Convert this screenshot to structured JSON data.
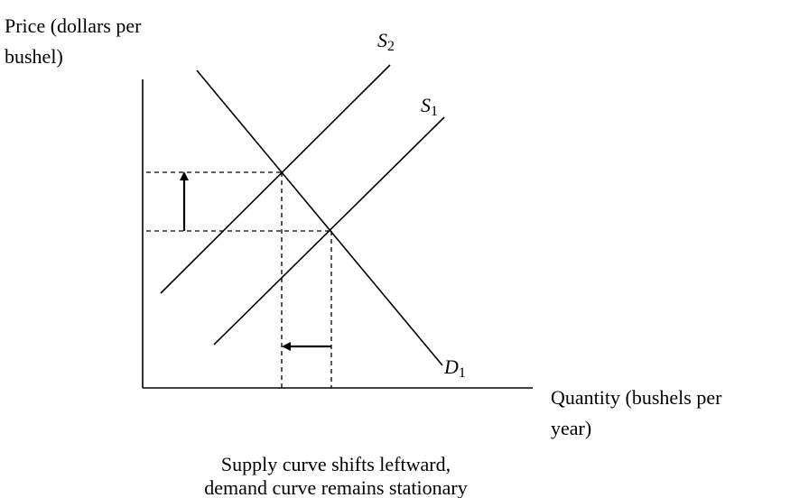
{
  "y_axis": {
    "label_lines": [
      "Price (dollars per",
      "bushel)"
    ]
  },
  "x_axis": {
    "label_lines": [
      "Quantity (bushels per",
      "year)"
    ]
  },
  "curves": [
    {
      "letter": "S",
      "subscript": "2"
    },
    {
      "letter": "S",
      "subscript": "1"
    },
    {
      "letter": "D",
      "subscript": "1"
    }
  ],
  "caption": {
    "lines": [
      "Supply curve shifts leftward,",
      "demand curve remains stationary"
    ]
  }
}
